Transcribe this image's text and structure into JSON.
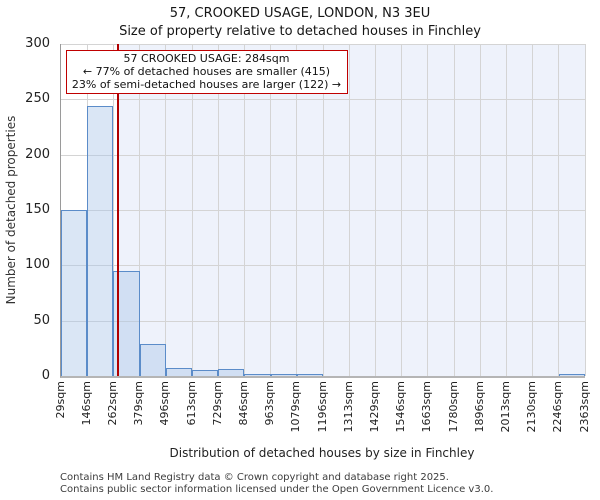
{
  "title": "57, CROOKED USAGE, LONDON, N3 3EU",
  "subtitle": "Size of property relative to detached houses in Finchley",
  "annotation": {
    "line1": "57 CROOKED USAGE: 284sqm",
    "line2": "← 77% of detached houses are smaller (415)",
    "line3": "23% of semi-detached houses are larger (122) →"
  },
  "chart_data": {
    "type": "bar",
    "title": "57, CROOKED USAGE, LONDON, N3 3EU",
    "subtitle": "Size of property relative to detached houses in Finchley",
    "xlabel": "Distribution of detached houses by size in Finchley",
    "ylabel": "Number of detached properties",
    "ylim": [
      0,
      300
    ],
    "yticks": [
      0,
      50,
      100,
      150,
      200,
      250,
      300
    ],
    "x_tick_labels": [
      "29sqm",
      "146sqm",
      "262sqm",
      "379sqm",
      "496sqm",
      "613sqm",
      "729sqm",
      "846sqm",
      "963sqm",
      "1079sqm",
      "1196sqm",
      "1313sqm",
      "1429sqm",
      "1546sqm",
      "1663sqm",
      "1780sqm",
      "1896sqm",
      "2013sqm",
      "2130sqm",
      "2246sqm",
      "2363sqm"
    ],
    "bin_edges_sqm": [
      29,
      146,
      262,
      379,
      496,
      613,
      729,
      846,
      963,
      1079,
      1196,
      1313,
      1429,
      1546,
      1663,
      1780,
      1896,
      2013,
      2130,
      2246,
      2363
    ],
    "values": [
      150,
      244,
      95,
      29,
      7,
      5,
      6,
      2,
      2,
      2,
      0,
      0,
      0,
      0,
      0,
      0,
      0,
      0,
      0,
      2
    ],
    "marker_value_sqm": 284,
    "grid": "on",
    "colors": {
      "bar_fill": "#dce6f5",
      "bar_border": "#5b8cc9",
      "marker_line": "#b00000",
      "annotation_border": "#c00000",
      "larger_region_shade": "#eef2fb",
      "gridline": "#d4d4d4"
    }
  },
  "footer": {
    "line1": "Contains HM Land Registry data © Crown copyright and database right 2025.",
    "line2": "Contains public sector information licensed under the Open Government Licence v3.0."
  }
}
